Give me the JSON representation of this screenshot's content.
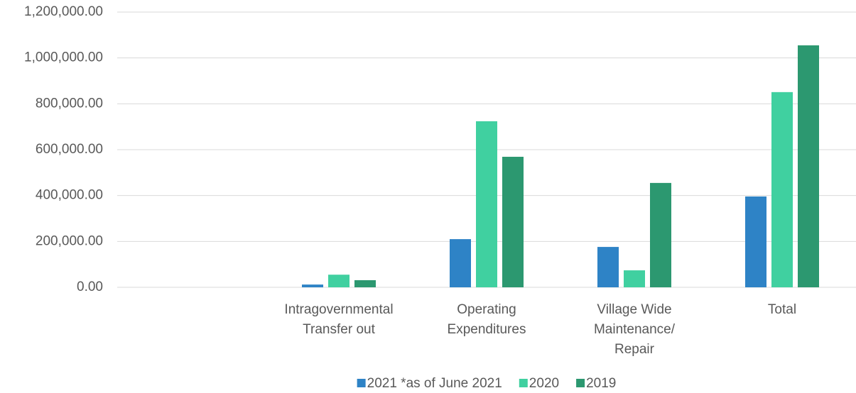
{
  "chart_data": {
    "type": "bar",
    "categories": [
      null,
      "Intragovernmental Transfer out",
      "Operating Expenditures",
      "Village Wide Maintenance/ Repair",
      "Total"
    ],
    "series": [
      {
        "name": "2021 *as of June 2021",
        "color": "#2e83c6",
        "values": [
          null,
          12000,
          210000,
          176000,
          396000
        ]
      },
      {
        "name": "2020",
        "color": "#40d0a0",
        "values": [
          null,
          55000,
          724000,
          74000,
          851000
        ]
      },
      {
        "name": "2019",
        "color": "#2c9870",
        "values": [
          null,
          31000,
          569000,
          455000,
          1055000
        ]
      }
    ],
    "ylim": [
      0,
      1200000
    ],
    "yticks": [
      {
        "value": 0,
        "label": "0.00"
      },
      {
        "value": 200000,
        "label": "200,000.00"
      },
      {
        "value": 400000,
        "label": "400,000.00"
      },
      {
        "value": 600000,
        "label": "600,000.00"
      },
      {
        "value": 800000,
        "label": "800,000.00"
      },
      {
        "value": 1000000,
        "label": "1,000,000.00"
      },
      {
        "value": 1200000,
        "label": "1,200,000.00"
      }
    ],
    "grid": true,
    "legend": "bottom"
  }
}
